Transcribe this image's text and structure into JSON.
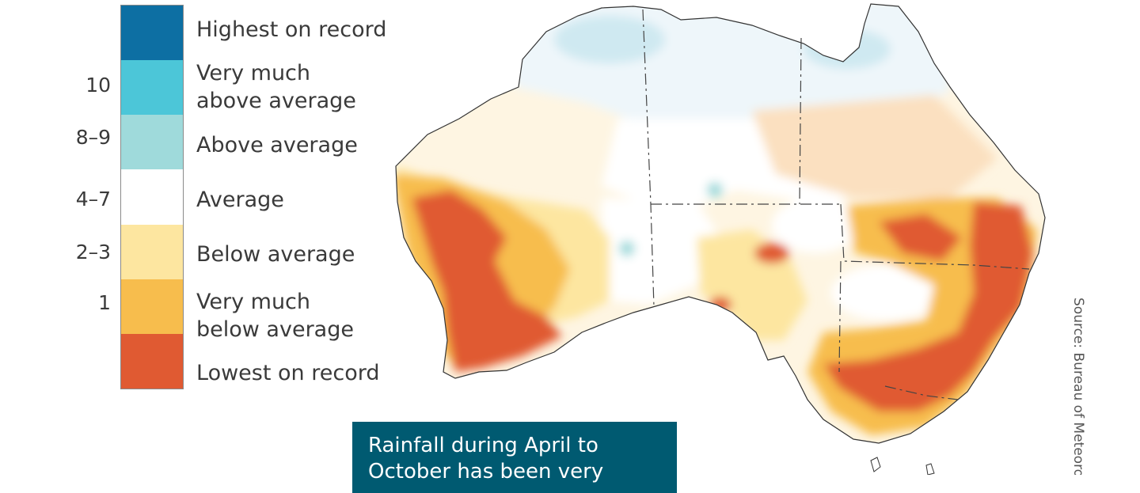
{
  "legend": {
    "items": [
      {
        "number": "",
        "label": "Highest on record",
        "color": "#0d6fa3"
      },
      {
        "number": "10",
        "label": "Very much\nabove average",
        "color": "#4cc6d8"
      },
      {
        "number": "8–9",
        "label": "Above average",
        "color": "#9fdadb"
      },
      {
        "number": "4–7",
        "label": "Average",
        "color": "#ffffff"
      },
      {
        "number": "2–3",
        "label": "Below average",
        "color": "#fde6a0"
      },
      {
        "number": "1",
        "label": "Very much\nbelow average",
        "color": "#f7bd4d"
      },
      {
        "number": "",
        "label": "Lowest on record",
        "color": "#e05a32"
      }
    ]
  },
  "source": "Source: Bureau of Meteorology",
  "callout": "Rainfall during April to October has been very"
}
